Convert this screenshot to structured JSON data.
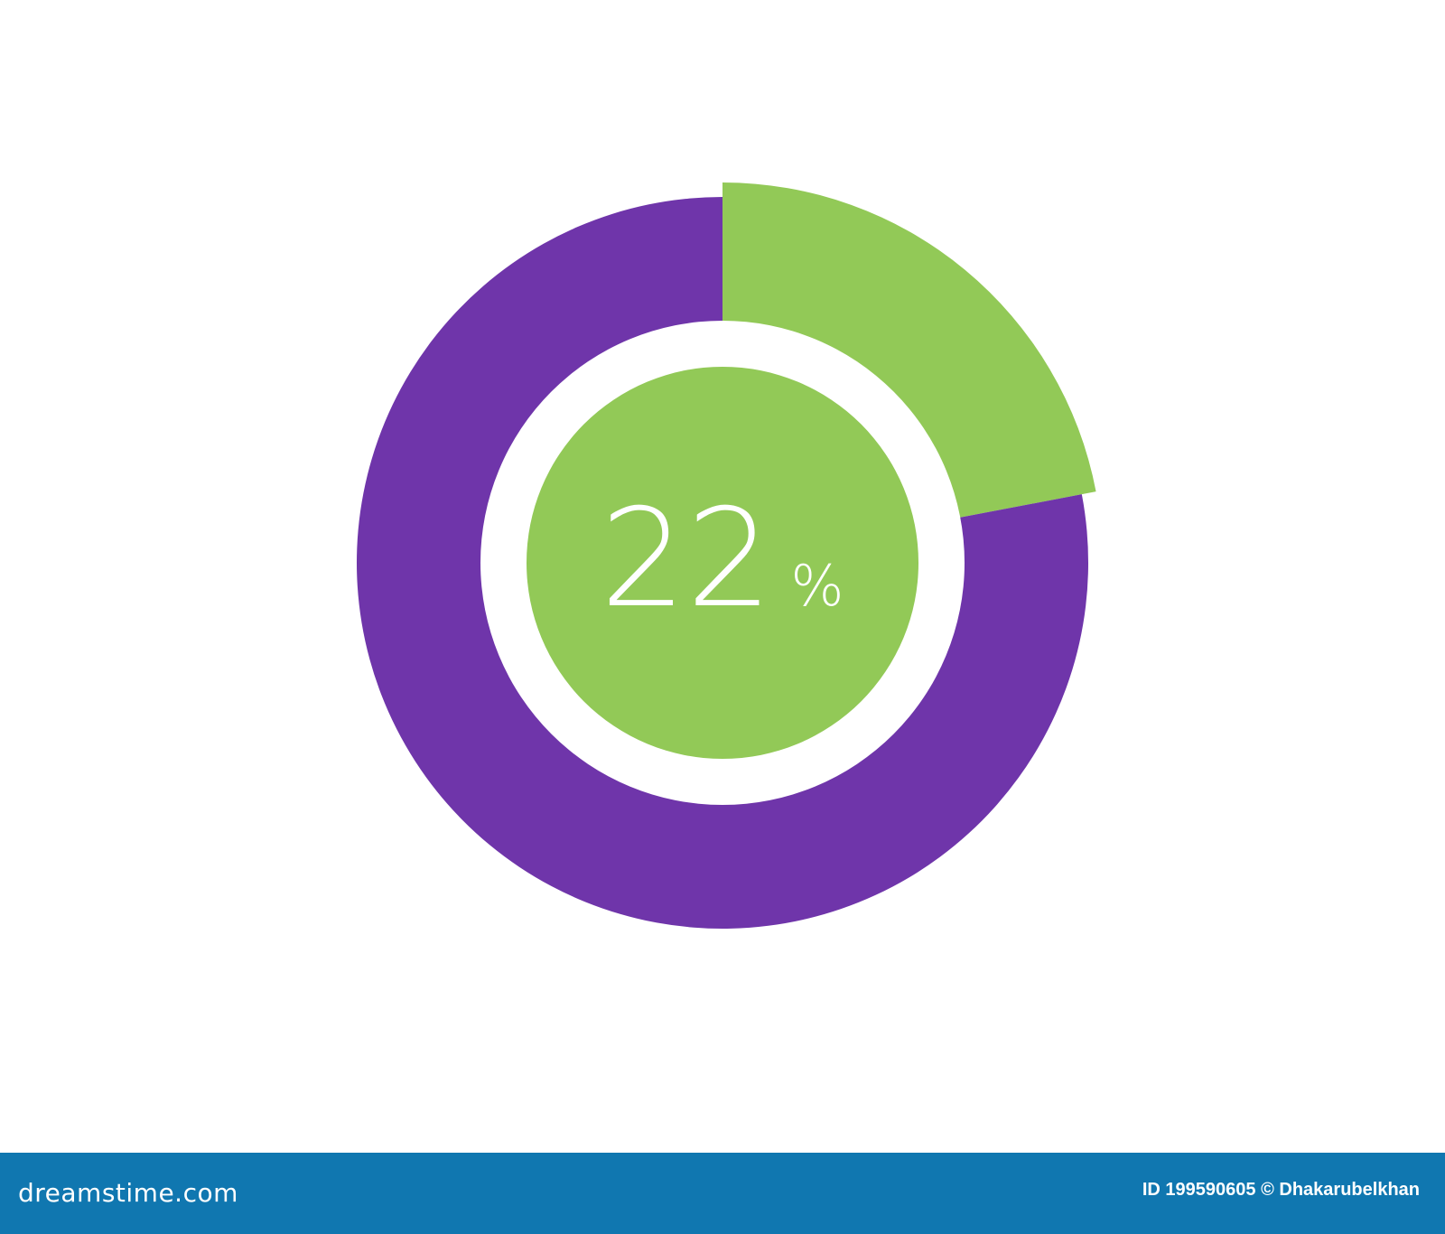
{
  "chart_data": {
    "type": "pie",
    "style": "donut",
    "values": [
      22,
      78
    ],
    "colors": [
      "#92c957",
      "#6f35aa"
    ],
    "center_label": "22",
    "center_label_unit": "%",
    "center_color": "#92c957",
    "start": "top",
    "direction": "clockwise"
  },
  "footer": {
    "brand": "dreamstime.com",
    "credit": "ID 199590605 © Dhakarubelkhan",
    "background": "#1077b0"
  }
}
